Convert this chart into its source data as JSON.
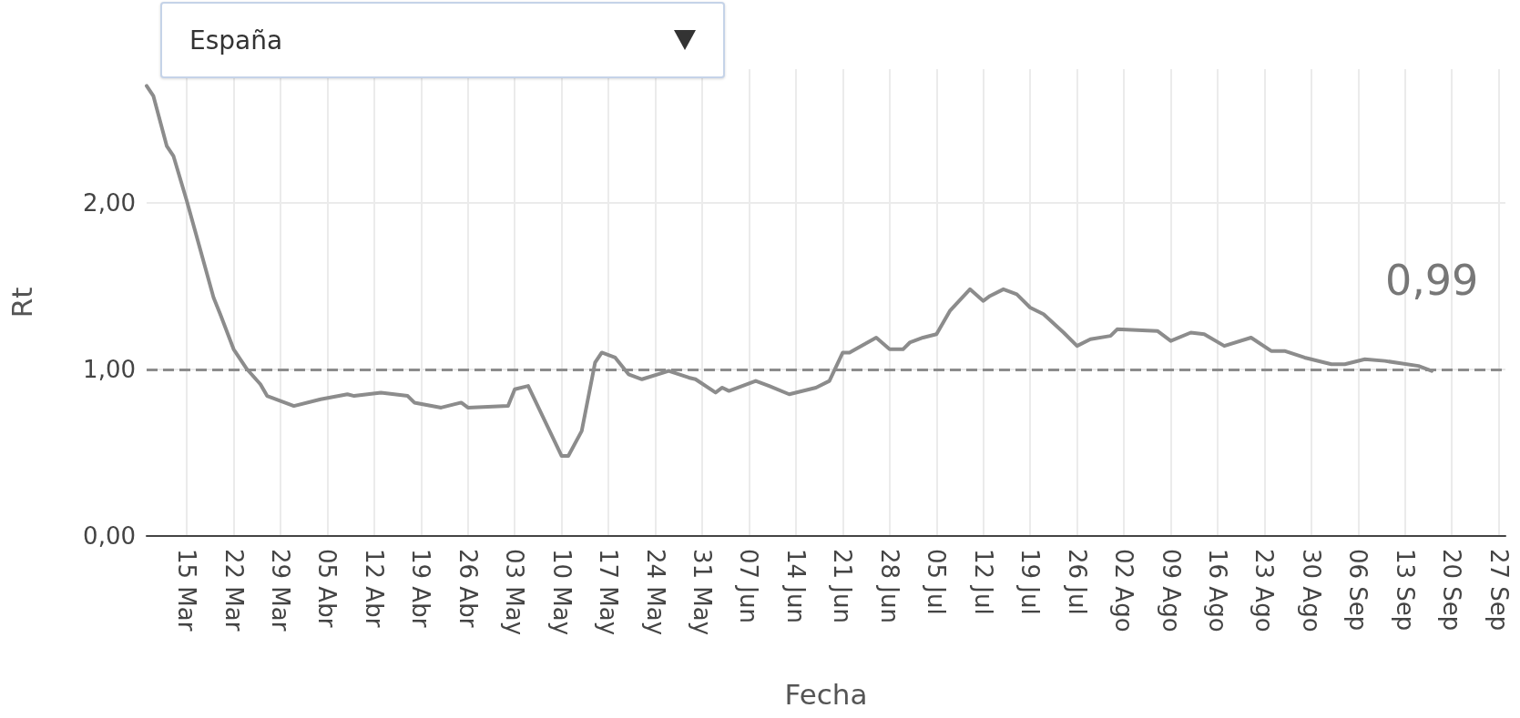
{
  "chart_data": {
    "type": "line",
    "title": "España",
    "xlabel": "Fecha",
    "ylabel": "Rt",
    "x": [
      "--03-09",
      "--03-10",
      "--03-12",
      "--03-13",
      "--03-15",
      "--03-19",
      "--03-20",
      "--03-22",
      "--03-24",
      "--03-26",
      "--03-27",
      "--03-31",
      "--04-04",
      "--04-08",
      "--04-09",
      "--04-13",
      "--04-17",
      "--04-18",
      "--04-22",
      "--04-25",
      "--04-26",
      "--05-02",
      "--05-03",
      "--05-05",
      "--05-10",
      "--05-11",
      "--05-13",
      "--05-15",
      "--05-16",
      "--05-18",
      "--05-20",
      "--05-22",
      "--05-26",
      "--05-29",
      "--05-30",
      "--06-02",
      "--06-03",
      "--06-04",
      "--06-08",
      "--06-10",
      "--06-13",
      "--06-17",
      "--06-19",
      "--06-21",
      "--06-22",
      "--06-26",
      "--06-28",
      "--06-30",
      "--07-01",
      "--07-03",
      "--07-05",
      "--07-07",
      "--07-10",
      "--07-12",
      "--07-13",
      "--07-15",
      "--07-17",
      "--07-19",
      "--07-21",
      "--07-24",
      "--07-26",
      "--07-28",
      "--07-31",
      "--08-01",
      "--08-07",
      "--08-09",
      "--08-12",
      "--08-14",
      "--08-17",
      "--08-21",
      "--08-24",
      "--08-26",
      "--08-29",
      "--09-02",
      "--09-04",
      "--09-07",
      "--09-10",
      "--09-15",
      "--09-17"
    ],
    "series": [
      {
        "color": "#8c8c8c",
        "values": [
          2.7,
          2.64,
          2.34,
          2.28,
          2.01,
          1.43,
          1.33,
          1.12,
          1.0,
          0.91,
          0.84,
          0.78,
          0.82,
          0.85,
          0.84,
          0.86,
          0.84,
          0.8,
          0.77,
          0.8,
          0.77,
          0.78,
          0.88,
          0.9,
          0.48,
          0.48,
          0.63,
          1.04,
          1.1,
          1.07,
          0.97,
          0.94,
          0.99,
          0.95,
          0.94,
          0.86,
          0.89,
          0.87,
          0.93,
          0.9,
          0.85,
          0.89,
          0.93,
          1.1,
          1.1,
          1.19,
          1.12,
          1.12,
          1.16,
          1.19,
          1.21,
          1.35,
          1.48,
          1.41,
          1.44,
          1.48,
          1.45,
          1.37,
          1.33,
          1.22,
          1.14,
          1.18,
          1.2,
          1.24,
          1.23,
          1.17,
          1.22,
          1.21,
          1.14,
          1.19,
          1.11,
          1.11,
          1.07,
          1.03,
          1.03,
          1.06,
          1.05,
          1.02,
          0.99
        ]
      }
    ],
    "xlim": [
      "--03-09",
      "--09-28"
    ],
    "xticks": [
      {
        "value": "--03-15",
        "label": "15 Mar"
      },
      {
        "value": "--03-22",
        "label": "22 Mar"
      },
      {
        "value": "--03-29",
        "label": "29 Mar"
      },
      {
        "value": "--04-05",
        "label": "05 Abr"
      },
      {
        "value": "--04-12",
        "label": "12 Abr"
      },
      {
        "value": "--04-19",
        "label": "19 Abr"
      },
      {
        "value": "--04-26",
        "label": "26 Abr"
      },
      {
        "value": "--05-03",
        "label": "03 May"
      },
      {
        "value": "--05-10",
        "label": "10 May"
      },
      {
        "value": "--05-17",
        "label": "17 May"
      },
      {
        "value": "--05-24",
        "label": "24 May"
      },
      {
        "value": "--05-31",
        "label": "31 May"
      },
      {
        "value": "--06-07",
        "label": "07 Jun"
      },
      {
        "value": "--06-14",
        "label": "14 Jun"
      },
      {
        "value": "--06-21",
        "label": "21 Jun"
      },
      {
        "value": "--06-28",
        "label": "28 Jun"
      },
      {
        "value": "--07-05",
        "label": "05 Jul"
      },
      {
        "value": "--07-12",
        "label": "12 Jul"
      },
      {
        "value": "--07-19",
        "label": "19 Jul"
      },
      {
        "value": "--07-26",
        "label": "26 Jul"
      },
      {
        "value": "--08-02",
        "label": "02 Ago"
      },
      {
        "value": "--08-09",
        "label": "09 Ago"
      },
      {
        "value": "--08-16",
        "label": "16 Ago"
      },
      {
        "value": "--08-23",
        "label": "23 Ago"
      },
      {
        "value": "--08-30",
        "label": "30 Ago"
      },
      {
        "value": "--09-06",
        "label": "06 Sep"
      },
      {
        "value": "--09-13",
        "label": "13 Sep"
      },
      {
        "value": "--09-20",
        "label": "20 Sep"
      },
      {
        "value": "--09-27",
        "label": "27 Sep"
      }
    ],
    "ylim": [
      0,
      2.8
    ],
    "yticks": [
      {
        "value": 0,
        "label": "0,00"
      },
      {
        "value": 1,
        "label": "1,00"
      },
      {
        "value": 2,
        "label": "2,00"
      }
    ],
    "ref_lines": [
      {
        "axis": "y",
        "value": 1,
        "color": "#8c8c8c",
        "line_style": "dashed"
      }
    ],
    "annotations": [
      {
        "text": "0,99",
        "x": "--09-17",
        "y": 0.99
      }
    ],
    "grid": true,
    "marker": "none",
    "line_style": "solid"
  }
}
